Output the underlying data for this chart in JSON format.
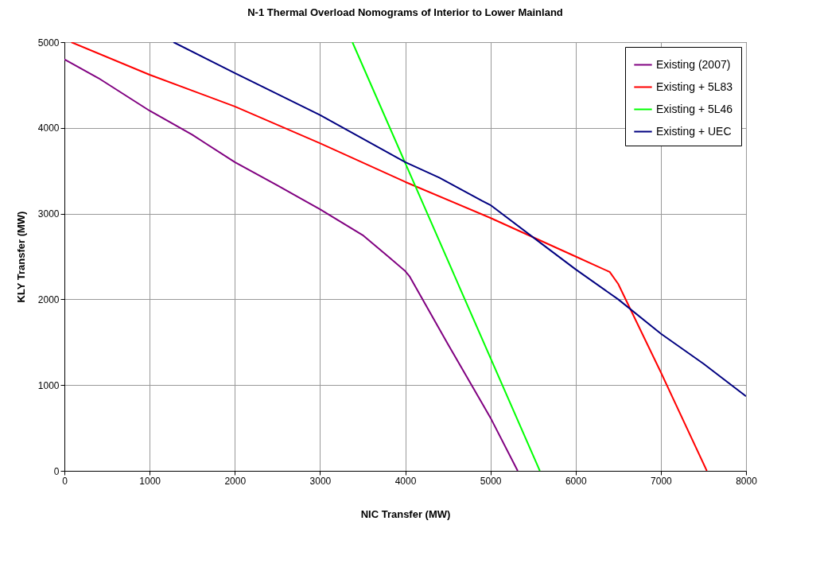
{
  "chart_data": {
    "type": "line",
    "title": "N-1 Thermal Overload Nomograms of Interior to Lower Mainland",
    "xlabel": "NIC Transfer (MW)",
    "ylabel": "KLY Transfer (MW)",
    "xlim": [
      0,
      8000
    ],
    "ylim": [
      0,
      5000
    ],
    "xticks": [
      0,
      1000,
      2000,
      3000,
      4000,
      5000,
      6000,
      7000,
      8000
    ],
    "yticks": [
      0,
      1000,
      2000,
      3000,
      4000,
      5000
    ],
    "grid": true,
    "legend": "top right",
    "marker": "none",
    "line_style": "solid",
    "series": [
      {
        "name": "Existing (2007)",
        "color": "#800080",
        "x": [
          0,
          400,
          1000,
          1500,
          2000,
          2500,
          3000,
          3500,
          3800,
          4000,
          4050,
          4500,
          5000,
          5320
        ],
        "values": [
          4800,
          4580,
          4200,
          3920,
          3600,
          3330,
          3050,
          2750,
          2500,
          2330,
          2270,
          1480,
          620,
          0
        ]
      },
      {
        "name": "Existing + 5L83",
        "color": "#ff0000",
        "x": [
          80,
          1000,
          2000,
          3000,
          4000,
          5000,
          6000,
          6400,
          6500,
          7000,
          7540
        ],
        "values": [
          5000,
          4620,
          4250,
          3820,
          3370,
          2950,
          2500,
          2320,
          2180,
          1150,
          0
        ]
      },
      {
        "name": "Existing + 5L46",
        "color": "#00ff00",
        "x": [
          3380,
          5580
        ],
        "values": [
          5000,
          0
        ]
      },
      {
        "name": "Existing + UEC",
        "color": "#000080",
        "x": [
          1280,
          2000,
          2100,
          3000,
          4000,
          4400,
          4900,
          5000,
          5600,
          6000,
          6500,
          7000,
          7500,
          8000
        ],
        "values": [
          5000,
          4640,
          4590,
          4150,
          3600,
          3420,
          3150,
          3100,
          2650,
          2350,
          2000,
          1600,
          1250,
          870
        ]
      }
    ]
  }
}
